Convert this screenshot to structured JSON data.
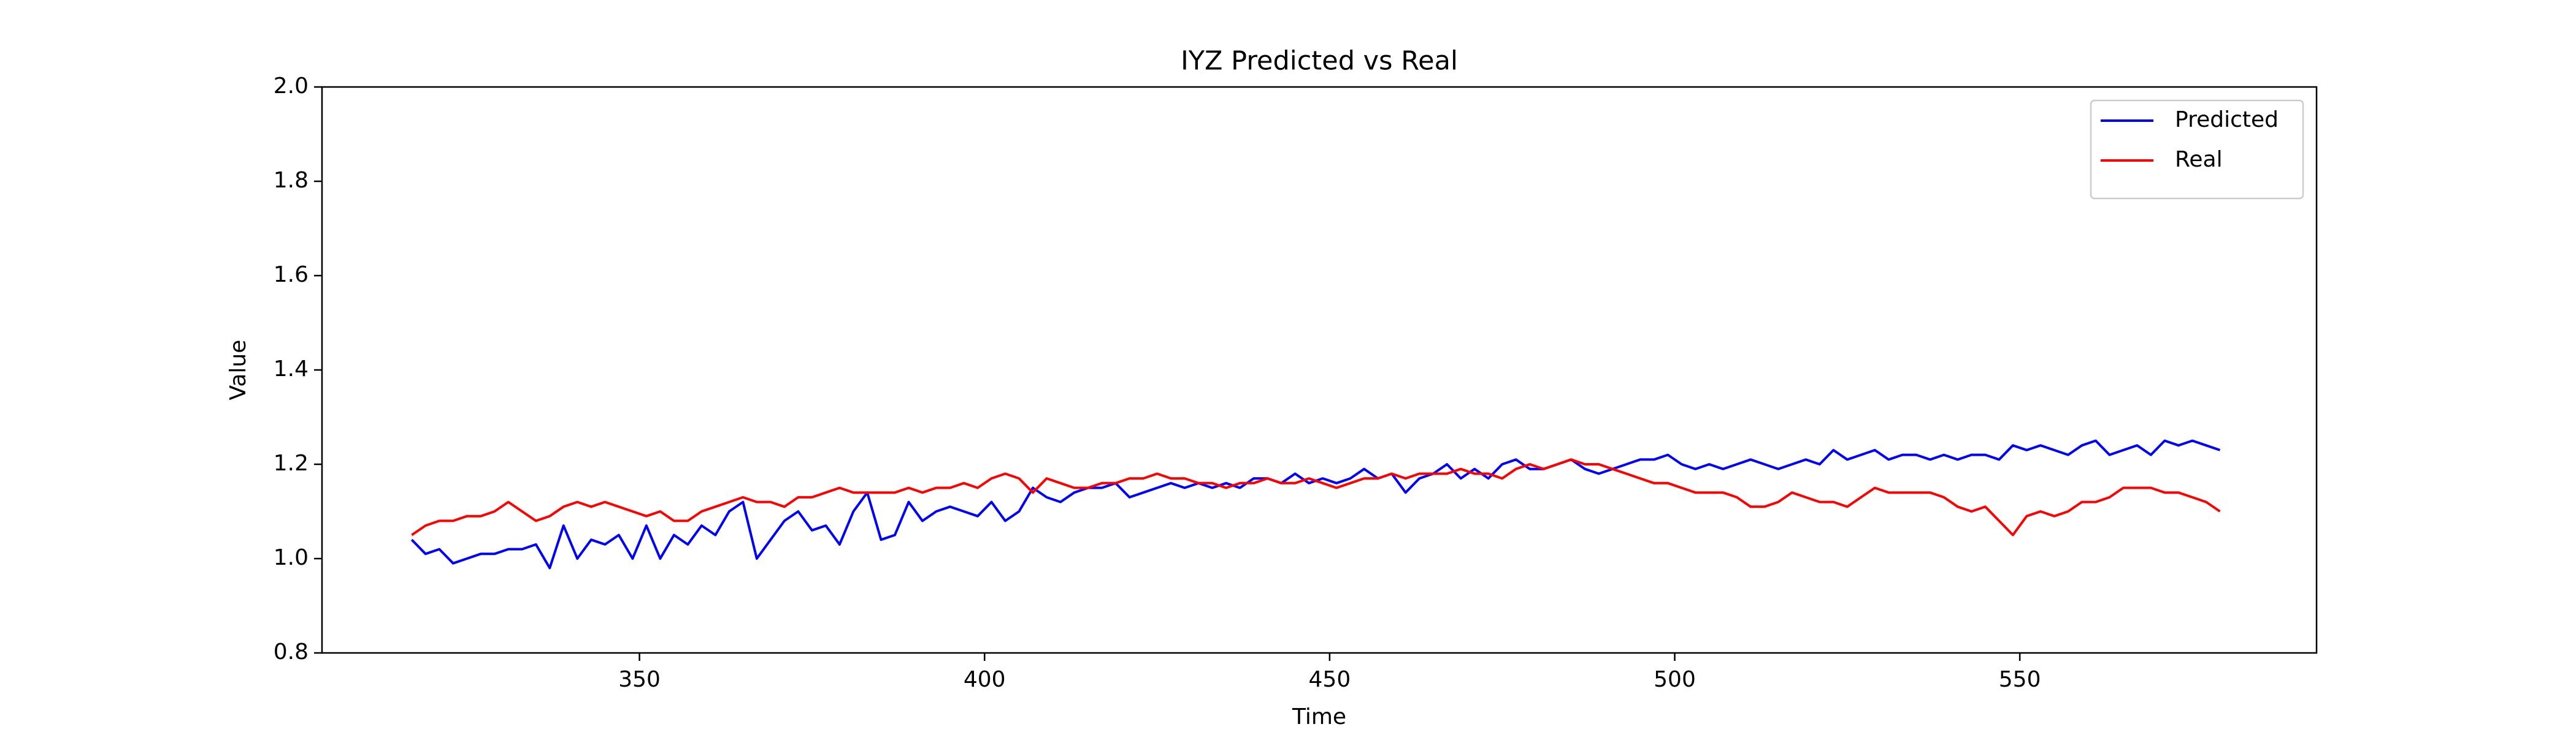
{
  "chart_data": {
    "type": "line",
    "title": "IYZ Predicted vs Real",
    "xlabel": "Time",
    "ylabel": "Value",
    "x": [
      317,
      319,
      321,
      323,
      325,
      327,
      329,
      331,
      333,
      335,
      337,
      339,
      341,
      343,
      345,
      347,
      349,
      351,
      353,
      355,
      357,
      359,
      361,
      363,
      365,
      367,
      369,
      371,
      373,
      375,
      377,
      379,
      381,
      383,
      385,
      387,
      389,
      391,
      393,
      395,
      397,
      399,
      401,
      403,
      405,
      407,
      409,
      411,
      413,
      415,
      417,
      419,
      421,
      423,
      425,
      427,
      429,
      431,
      433,
      435,
      437,
      439,
      441,
      443,
      445,
      447,
      449,
      451,
      453,
      455,
      457,
      459,
      461,
      463,
      465,
      467,
      469,
      471,
      473,
      475,
      477,
      479,
      481,
      483,
      485,
      487,
      489,
      491,
      493,
      495,
      497,
      499,
      501,
      503,
      505,
      507,
      509,
      511,
      513,
      515,
      517,
      519,
      521,
      523,
      525,
      527,
      529,
      531,
      533,
      535,
      537,
      539,
      541,
      543,
      545,
      547,
      549,
      551,
      553,
      555,
      557,
      559,
      561,
      563,
      565,
      567,
      569,
      571,
      573,
      575,
      577,
      579
    ],
    "series": [
      {
        "name": "Predicted",
        "color": "#0000ff",
        "values": [
          1.04,
          1.01,
          1.02,
          0.99,
          1.0,
          1.01,
          1.01,
          1.02,
          1.02,
          1.03,
          0.98,
          1.07,
          1.0,
          1.04,
          1.03,
          1.05,
          1.0,
          1.07,
          1.0,
          1.05,
          1.03,
          1.07,
          1.05,
          1.1,
          1.12,
          1.0,
          1.04,
          1.08,
          1.1,
          1.06,
          1.07,
          1.03,
          1.1,
          1.14,
          1.04,
          1.05,
          1.12,
          1.08,
          1.1,
          1.11,
          1.1,
          1.09,
          1.12,
          1.08,
          1.1,
          1.15,
          1.13,
          1.12,
          1.14,
          1.15,
          1.15,
          1.16,
          1.13,
          1.14,
          1.15,
          1.16,
          1.15,
          1.16,
          1.15,
          1.16,
          1.15,
          1.17,
          1.17,
          1.16,
          1.18,
          1.16,
          1.17,
          1.16,
          1.17,
          1.19,
          1.17,
          1.18,
          1.14,
          1.17,
          1.18,
          1.2,
          1.17,
          1.19,
          1.17,
          1.2,
          1.21,
          1.19,
          1.19,
          1.2,
          1.21,
          1.19,
          1.18,
          1.19,
          1.2,
          1.21,
          1.21,
          1.22,
          1.2,
          1.19,
          1.2,
          1.19,
          1.2,
          1.21,
          1.2,
          1.19,
          1.2,
          1.21,
          1.2,
          1.23,
          1.21,
          1.22,
          1.23,
          1.21,
          1.22,
          1.22,
          1.21,
          1.22,
          1.21,
          1.22,
          1.22,
          1.21,
          1.24,
          1.23,
          1.24,
          1.23,
          1.22,
          1.24,
          1.25,
          1.22,
          1.23,
          1.24,
          1.22,
          1.25,
          1.24,
          1.25,
          1.24,
          1.23
        ]
      },
      {
        "name": "Real",
        "color": "#ff0000",
        "values": [
          1.05,
          1.07,
          1.08,
          1.08,
          1.09,
          1.09,
          1.1,
          1.12,
          1.1,
          1.08,
          1.09,
          1.11,
          1.12,
          1.11,
          1.12,
          1.11,
          1.1,
          1.09,
          1.1,
          1.08,
          1.08,
          1.1,
          1.11,
          1.12,
          1.13,
          1.12,
          1.12,
          1.11,
          1.13,
          1.13,
          1.14,
          1.15,
          1.14,
          1.14,
          1.14,
          1.14,
          1.15,
          1.14,
          1.15,
          1.15,
          1.16,
          1.15,
          1.17,
          1.18,
          1.17,
          1.14,
          1.17,
          1.16,
          1.15,
          1.15,
          1.16,
          1.16,
          1.17,
          1.17,
          1.18,
          1.17,
          1.17,
          1.16,
          1.16,
          1.15,
          1.16,
          1.16,
          1.17,
          1.16,
          1.16,
          1.17,
          1.16,
          1.15,
          1.16,
          1.17,
          1.17,
          1.18,
          1.17,
          1.18,
          1.18,
          1.18,
          1.19,
          1.18,
          1.18,
          1.17,
          1.19,
          1.2,
          1.19,
          1.2,
          1.21,
          1.2,
          1.2,
          1.19,
          1.18,
          1.17,
          1.16,
          1.16,
          1.15,
          1.14,
          1.14,
          1.14,
          1.13,
          1.11,
          1.11,
          1.12,
          1.14,
          1.13,
          1.12,
          1.12,
          1.11,
          1.13,
          1.15,
          1.14,
          1.14,
          1.14,
          1.14,
          1.13,
          1.11,
          1.1,
          1.11,
          1.08,
          1.05,
          1.09,
          1.1,
          1.09,
          1.1,
          1.12,
          1.12,
          1.13,
          1.15,
          1.15,
          1.15,
          1.14,
          1.14,
          1.13,
          1.12,
          1.1
        ]
      }
    ],
    "xlim": [
      304,
      593
    ],
    "xticks": [
      350,
      400,
      450,
      500,
      550
    ],
    "ylim": [
      0.8,
      2.0
    ],
    "yticks": [
      0.8,
      {
        "value": 1,
        "label": "1.0"
      },
      1.2,
      1.4,
      1.6,
      1.8,
      {
        "value": 2,
        "label": "2.0"
      }
    ],
    "legend": "upper right"
  }
}
